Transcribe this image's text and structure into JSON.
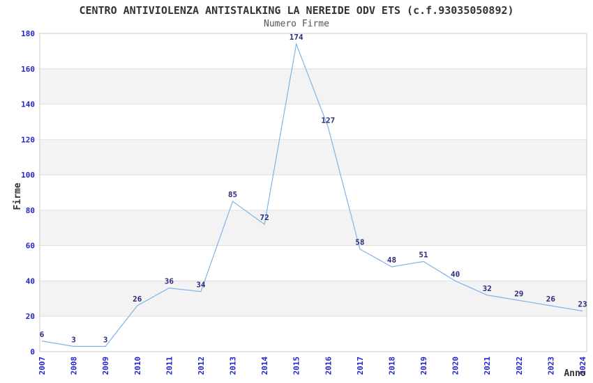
{
  "chart_data": {
    "type": "line",
    "title": "CENTRO ANTIVIOLENZA ANTISTALKING LA NEREIDE ODV ETS (c.f.93035050892)",
    "subtitle": "Numero Firme",
    "xlabel": "Anno",
    "ylabel": "Firme",
    "categories": [
      "2007",
      "2008",
      "2009",
      "2010",
      "2011",
      "2012",
      "2013",
      "2014",
      "2015",
      "2016",
      "2017",
      "2018",
      "2019",
      "2020",
      "2021",
      "2022",
      "2023",
      "2024"
    ],
    "values": [
      6,
      3,
      3,
      26,
      36,
      34,
      85,
      72,
      174,
      127,
      58,
      48,
      51,
      40,
      32,
      29,
      26,
      23
    ],
    "ylim": [
      0,
      180
    ],
    "ytick_step": 20,
    "grid": "horizontal",
    "alternating_bands": true,
    "legend_position": "none",
    "x_tick_rotation": 90,
    "colors": {
      "line": "#7FB3E6",
      "tick_label": "#2323CC",
      "data_label": "#2A2A7E",
      "title": "#333333",
      "subtitle": "#555555",
      "axis_label": "#333333",
      "band": "#F3F3F3",
      "gridline": "#E0E0E0",
      "plot_border": "#C9C9C9",
      "background": "#FFFFFF"
    }
  }
}
